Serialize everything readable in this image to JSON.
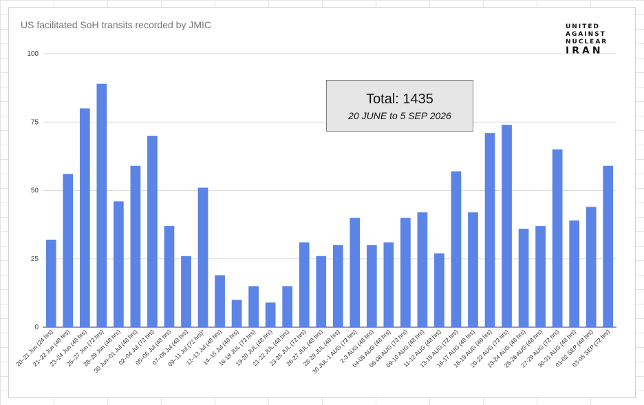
{
  "chart_data": {
    "type": "bar",
    "title": "US facilitated SoH transits recorded by JMIC",
    "xlabel": "",
    "ylabel": "",
    "ylim": [
      0,
      100
    ],
    "yticks": [
      0,
      25,
      50,
      75,
      100
    ],
    "grid": true,
    "bar_color": "#5b84e6",
    "categories": [
      "20–21 Jun (24 hrs)",
      "21–22 Jun (48 hrs)",
      "23–24 Jun (48 hrs)",
      "25–27 Jun (72 hrs)",
      "28–29 Jun (48 hrs)",
      "30 Jun–01 Jul (48 hrs)",
      "02–04 Jul (72 hrs)",
      "05–06 Jul (48 hrs)",
      "07–08 Jul (48 hrs)",
      "09–11 Jul (72 hrs)*",
      "12–13 Jul (48 hrs)",
      "14–15 Jul (48 hrs)",
      "16-18 JUL (72 hrs)",
      "19-20 JUL (48 hrs)",
      "21-22 JUL (48 hrs)",
      "23-25 JUL (72 hrs)",
      "26-27 JUL (48 hrs)",
      "28-29 JUL (48 hrs)",
      "30 JUL-1 AUG (72 hrs)",
      "2-3 AUG (48 hrs)",
      "04-05 AUG (48 hrs)",
      "06-08 AUG (72 hrs)",
      "09-10 AUG (48 hrs)",
      "11-12 AUG (48 hrs)",
      "13-15 AUG (72 hrs)",
      "16-17 AUG (48 hrs)",
      "18-19 AUG (48 hrs)",
      "20-22 AUG (72 hrs)",
      "23-24 AUG (48 hrs)",
      "25-26 AUG (48 hrs)",
      "27-29 AUG (72 hrs)",
      "30-31 AUG (48 hrs)",
      "01-02 SEP (48 hrs)",
      "03-05 SEP (72 hrs)"
    ],
    "values": [
      32,
      56,
      80,
      89,
      46,
      59,
      70,
      37,
      26,
      51,
      19,
      10,
      15,
      9,
      15,
      31,
      26,
      30,
      40,
      30,
      31,
      40,
      42,
      27,
      57,
      42,
      71,
      74,
      36,
      37,
      65,
      39,
      44,
      59
    ]
  },
  "annotation": {
    "total": "Total: 1435",
    "range": "20 JUNE to 5 SEP 2026"
  },
  "logo": {
    "line1": "UNITED",
    "line2": "AGAINST",
    "line3": "NUCLEAR",
    "line4": "IRAN"
  }
}
